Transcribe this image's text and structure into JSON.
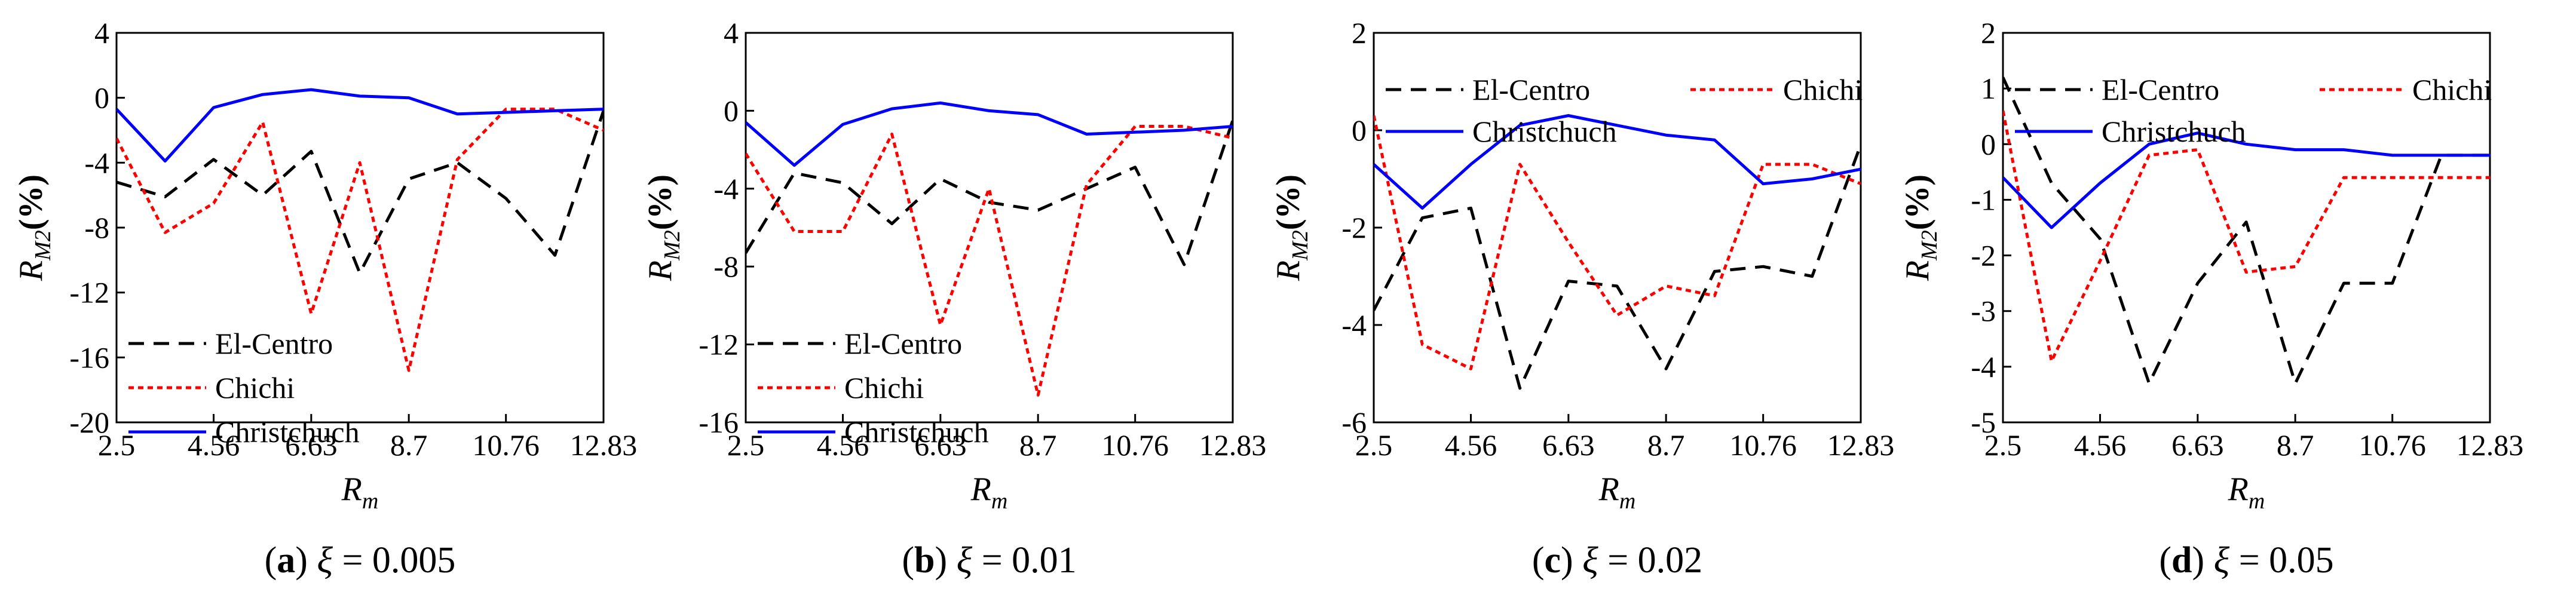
{
  "colors": {
    "el_centro": "#000000",
    "chichi": "#ff0000",
    "christchurch": "#0000ff",
    "axis": "#000000"
  },
  "chart_data": [
    {
      "type": "line",
      "panel_letter": "(a)",
      "panel_value": " = 0.005",
      "xlabel": "R",
      "xlabel_sub": "m",
      "ylabel": "R",
      "ylabel_sub": "M2",
      "ylabel_unit": "(%)",
      "xlim": [
        2.5,
        12.83
      ],
      "ylim": [
        -20,
        4
      ],
      "xticks": [
        "2.5",
        "4.56",
        "6.63",
        "8.7",
        "10.76",
        "12.83"
      ],
      "yticks": [
        "4",
        "0",
        "-4",
        "-8",
        "-12",
        "-16",
        "-20"
      ],
      "legend_position": "bottom-left",
      "x": [
        2.5,
        3.53,
        4.56,
        5.6,
        6.63,
        7.66,
        8.7,
        9.73,
        10.76,
        11.8,
        12.83
      ],
      "series": [
        {
          "name": "El-Centro",
          "key": "el_centro",
          "dash": "dashed",
          "values": [
            -5.2,
            -6.1,
            -3.8,
            -6.0,
            -3.3,
            -10.8,
            -5.0,
            -4.0,
            -6.2,
            -9.7,
            -0.8
          ]
        },
        {
          "name": "Chichi",
          "key": "chichi",
          "dash": "dotted",
          "values": [
            -2.5,
            -8.3,
            -6.5,
            -1.5,
            -13.3,
            -4.0,
            -16.8,
            -3.8,
            -0.7,
            -0.7,
            -2.0
          ]
        },
        {
          "name": "Christchuch",
          "key": "christchurch",
          "dash": "solid",
          "values": [
            -0.7,
            -3.9,
            -0.6,
            0.2,
            0.5,
            0.1,
            0.0,
            -1.0,
            -0.9,
            -0.8,
            -0.7
          ]
        }
      ]
    },
    {
      "type": "line",
      "panel_letter": "(b)",
      "panel_value": " = 0.01",
      "xlabel": "R",
      "xlabel_sub": "m",
      "ylabel": "R",
      "ylabel_sub": "M2",
      "ylabel_unit": "(%)",
      "xlim": [
        2.5,
        12.83
      ],
      "ylim": [
        -16,
        4
      ],
      "xticks": [
        "2.5",
        "4.56",
        "6.63",
        "8.7",
        "10.76",
        "12.83"
      ],
      "yticks": [
        "4",
        "0",
        "-4",
        "-8",
        "-12",
        "-16"
      ],
      "legend_position": "bottom-left",
      "x": [
        2.5,
        3.53,
        4.56,
        5.6,
        6.63,
        7.66,
        8.7,
        9.73,
        10.76,
        11.8,
        12.83
      ],
      "series": [
        {
          "name": "El-Centro",
          "key": "el_centro",
          "dash": "dashed",
          "values": [
            -7.3,
            -3.2,
            -3.7,
            -5.8,
            -3.5,
            -4.7,
            -5.1,
            -4.0,
            -2.9,
            -7.9,
            -0.5
          ]
        },
        {
          "name": "Chichi",
          "key": "chichi",
          "dash": "dotted",
          "values": [
            -2.2,
            -6.2,
            -6.2,
            -1.2,
            -11.0,
            -4.0,
            -14.6,
            -3.8,
            -0.8,
            -0.8,
            -1.4
          ]
        },
        {
          "name": "Christchuch",
          "key": "christchurch",
          "dash": "solid",
          "values": [
            -0.6,
            -2.8,
            -0.7,
            0.1,
            0.4,
            0.0,
            -0.2,
            -1.2,
            -1.1,
            -1.0,
            -0.8
          ]
        }
      ]
    },
    {
      "type": "line",
      "panel_letter": "(c)",
      "panel_value": " = 0.02",
      "xlabel": "R",
      "xlabel_sub": "m",
      "ylabel": "R",
      "ylabel_sub": "M2",
      "ylabel_unit": "(%)",
      "xlim": [
        2.5,
        12.83
      ],
      "ylim": [
        -6,
        2
      ],
      "xticks": [
        "2.5",
        "4.56",
        "6.63",
        "8.7",
        "10.76",
        "12.83"
      ],
      "yticks": [
        "2",
        "0",
        "-2",
        "-4",
        "-6"
      ],
      "legend_position": "top-left",
      "x": [
        2.5,
        3.53,
        4.56,
        5.6,
        6.63,
        7.66,
        8.7,
        9.73,
        10.76,
        11.8,
        12.83
      ],
      "series": [
        {
          "name": "El-Centro",
          "key": "el_centro",
          "dash": "dashed",
          "values": [
            -3.7,
            -1.8,
            -1.6,
            -5.3,
            -3.1,
            -3.2,
            -4.9,
            -2.9,
            -2.8,
            -3.0,
            -0.3
          ]
        },
        {
          "name": "Chichi",
          "key": "chichi",
          "dash": "dotted",
          "values": [
            0.3,
            -4.4,
            -4.9,
            -0.7,
            -2.3,
            -3.8,
            -3.2,
            -3.4,
            -0.7,
            -0.7,
            -1.1
          ]
        },
        {
          "name": "Christchuch",
          "key": "christchurch",
          "dash": "solid",
          "values": [
            -0.7,
            -1.6,
            -0.7,
            0.1,
            0.3,
            0.1,
            -0.1,
            -0.2,
            -1.1,
            -1.0,
            -0.8
          ]
        }
      ]
    },
    {
      "type": "line",
      "panel_letter": "(d)",
      "panel_value": " = 0.05",
      "xlabel": "R",
      "xlabel_sub": "m",
      "ylabel": "R",
      "ylabel_sub": "M2",
      "ylabel_unit": "(%)",
      "xlim": [
        2.5,
        12.83
      ],
      "ylim": [
        -5,
        2
      ],
      "xticks": [
        "2.5",
        "4.56",
        "6.63",
        "8.7",
        "10.76",
        "12.83"
      ],
      "yticks": [
        "2",
        "1",
        "0",
        "-1",
        "-2",
        "-3",
        "-4",
        "-5"
      ],
      "legend_position": "top-left",
      "x": [
        2.5,
        3.53,
        4.56,
        5.6,
        6.63,
        7.66,
        8.7,
        9.73,
        10.76,
        11.8,
        12.83
      ],
      "series": [
        {
          "name": "El-Centro",
          "key": "el_centro",
          "dash": "dashed",
          "values": [
            1.2,
            -0.7,
            -1.7,
            -4.3,
            -2.5,
            -1.4,
            -4.3,
            -2.5,
            -2.5,
            -0.2,
            -0.2
          ]
        },
        {
          "name": "Chichi",
          "key": "chichi",
          "dash": "dotted",
          "values": [
            0.6,
            -3.9,
            -2.1,
            -0.2,
            -0.1,
            -2.3,
            -2.2,
            -0.6,
            -0.6,
            -0.6,
            -0.6
          ]
        },
        {
          "name": "Christchuch",
          "key": "christchurch",
          "dash": "solid",
          "values": [
            -0.6,
            -1.5,
            -0.7,
            0.0,
            0.2,
            0.0,
            -0.1,
            -0.1,
            -0.2,
            -0.2,
            -0.2
          ]
        }
      ]
    }
  ]
}
